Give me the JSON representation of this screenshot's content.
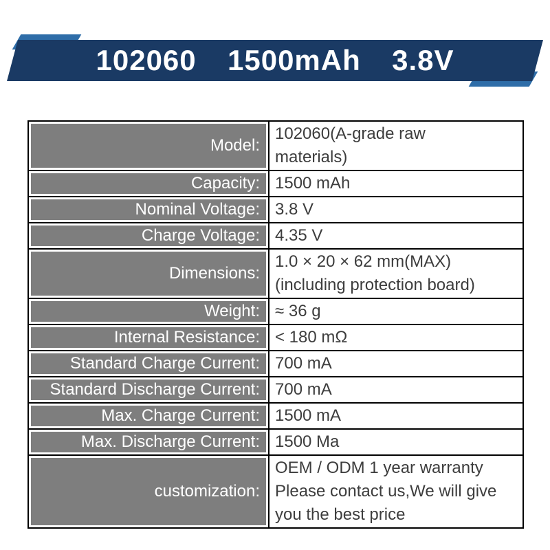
{
  "colors": {
    "banner_band": "#1a3a64",
    "banner_accent": "#2e6da8",
    "label_bg": "#7e7e7e",
    "label_text": "#ffffff",
    "value_text": "#3d3d3d",
    "border_color": "#000000"
  },
  "banner": {
    "title": "102060  1500mAh  3.8V"
  },
  "table": {
    "rows": [
      {
        "label": "Model:",
        "value": "102060(A-grade raw\nmaterials)"
      },
      {
        "label": "Capacity:",
        "value": "1500 mAh"
      },
      {
        "label": "Nominal Voltage:",
        "value": "3.8 V"
      },
      {
        "label": "Charge Voltage:",
        "value": "4.35 V"
      },
      {
        "label": "Dimensions:",
        "value": "1.0 × 20 × 62 mm(MAX)\n(including protection board)"
      },
      {
        "label": "Weight:",
        "value": "≈ 36 g"
      },
      {
        "label": "Internal Resistance:",
        "value": "< 180 mΩ"
      },
      {
        "label": "Standard Charge Current:",
        "value": "700 mA"
      },
      {
        "label": "Standard Discharge Current:",
        "value": "700 mA"
      },
      {
        "label": "Max. Charge Current:",
        "value": "1500 mA"
      },
      {
        "label": "Max. Discharge Current:",
        "value": "1500 Ma"
      },
      {
        "label": "customization:",
        "value": "OEM / ODM   1 year warranty\nPlease contact us,We will give\nyou the best price"
      }
    ]
  }
}
